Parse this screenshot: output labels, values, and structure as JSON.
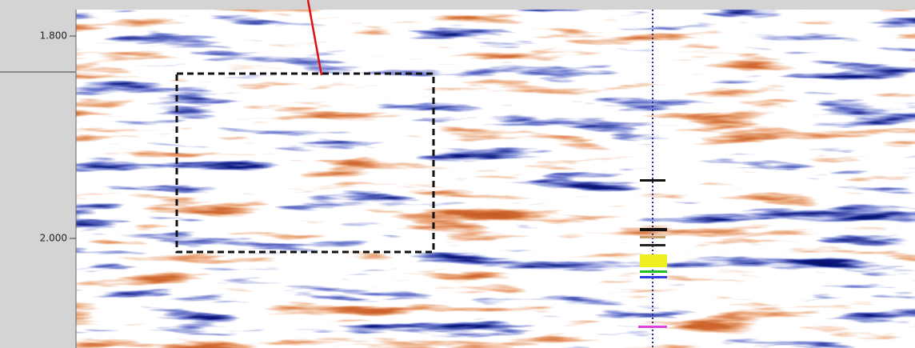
{
  "axis": {
    "ticks": [
      {
        "value": 1.8,
        "label": "1.800"
      },
      {
        "value": 2.0,
        "label": "2.000"
      }
    ]
  }
}
